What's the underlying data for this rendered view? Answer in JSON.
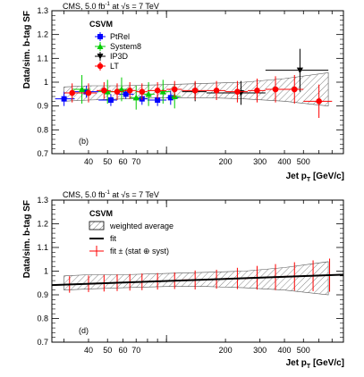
{
  "chart_data": [
    {
      "type": "scatter",
      "panel": "(b)",
      "header": "CMS, 5.0 fb",
      "header_sup": "-1",
      "header_tail": " at √s = 7 TeV",
      "xlabel": "Jet p",
      "xlabel_sub": "T",
      "xlabel_unit": " [GeV/c]",
      "ylabel": "Data/sim. b-tag SF",
      "xscale": "log",
      "xlim": [
        26,
        800
      ],
      "ylim": [
        0.7,
        1.3
      ],
      "xticks": [
        40,
        50,
        60,
        70,
        200,
        300,
        400,
        500
      ],
      "xtick_labels": [
        "40",
        "50",
        "60",
        "70",
        "200",
        "300",
        "400",
        "500"
      ],
      "yticks": [
        0.7,
        0.8,
        0.9,
        1,
        1.1,
        1.2,
        1.3
      ],
      "ytick_labels": [
        "0.7",
        "0.8",
        "0.9",
        "1",
        "1.1",
        "1.2",
        "1.3"
      ],
      "legend_title": "CSVM",
      "legend_position": "top-center",
      "band": {
        "x": [
          30,
          40,
          60,
          100,
          160,
          250,
          400,
          670
        ],
        "lo": [
          0.92,
          0.925,
          0.93,
          0.935,
          0.935,
          0.93,
          0.92,
          0.9
        ],
        "hi": [
          0.98,
          0.985,
          0.985,
          0.99,
          0.995,
          1.0,
          1.015,
          1.04
        ]
      },
      "series": [
        {
          "name": "PtRel",
          "marker": "square",
          "color": "#0000ff",
          "points": [
            {
              "x": 30,
              "xlo": 27,
              "xhi": 34,
              "y": 0.93,
              "err": 0.03
            },
            {
              "x": 39,
              "xlo": 34,
              "xhi": 45,
              "y": 0.96,
              "err": 0.025
            },
            {
              "x": 52,
              "xlo": 45,
              "xhi": 56,
              "y": 0.925,
              "err": 0.025
            },
            {
              "x": 62,
              "xlo": 56,
              "xhi": 68,
              "y": 0.95,
              "err": 0.02
            },
            {
              "x": 75,
              "xlo": 68,
              "xhi": 80,
              "y": 0.93,
              "err": 0.025
            },
            {
              "x": 90,
              "xlo": 80,
              "xhi": 100,
              "y": 0.925,
              "err": 0.025
            },
            {
              "x": 105,
              "xlo": 100,
              "xhi": 115,
              "y": 0.935,
              "err": 0.03
            }
          ]
        },
        {
          "name": "System8",
          "marker": "triangle-up",
          "color": "#00cc00",
          "points": [
            {
              "x": 37,
              "xlo": 33,
              "xhi": 41,
              "y": 0.97,
              "err": 0.06
            },
            {
              "x": 50,
              "xlo": 45,
              "xhi": 55,
              "y": 0.96,
              "err": 0.05
            },
            {
              "x": 59,
              "xlo": 55,
              "xhi": 63,
              "y": 0.97,
              "err": 0.05
            },
            {
              "x": 70,
              "xlo": 65,
              "xhi": 75,
              "y": 0.935,
              "err": 0.05
            },
            {
              "x": 81,
              "xlo": 75,
              "xhi": 87,
              "y": 0.95,
              "err": 0.05
            },
            {
              "x": 96,
              "xlo": 87,
              "xhi": 105,
              "y": 0.96,
              "err": 0.05
            },
            {
              "x": 110,
              "xlo": 105,
              "xhi": 118,
              "y": 0.94,
              "err": 0.05
            }
          ]
        },
        {
          "name": "IP3D",
          "marker": "triangle-down",
          "color": "#000000",
          "points": [
            {
              "x": 140,
              "xlo": 120,
              "xhi": 160,
              "y": 0.96,
              "err": 0.04
            },
            {
              "x": 240,
              "xlo": 160,
              "xhi": 320,
              "y": 0.955,
              "err": 0.05
            },
            {
              "x": 480,
              "xlo": 320,
              "xhi": 670,
              "y": 1.05,
              "err": 0.09
            }
          ]
        },
        {
          "name": "LT",
          "marker": "circle",
          "color": "#ff0000",
          "points": [
            {
              "x": 33,
              "xlo": 30,
              "xhi": 36,
              "y": 0.955,
              "err": 0.04
            },
            {
              "x": 40,
              "xlo": 36,
              "xhi": 44,
              "y": 0.955,
              "err": 0.04
            },
            {
              "x": 48,
              "xlo": 44,
              "xhi": 52,
              "y": 0.965,
              "err": 0.035
            },
            {
              "x": 56,
              "xlo": 52,
              "xhi": 60,
              "y": 0.96,
              "err": 0.035
            },
            {
              "x": 65,
              "xlo": 60,
              "xhi": 70,
              "y": 0.965,
              "err": 0.035
            },
            {
              "x": 75,
              "xlo": 70,
              "xhi": 80,
              "y": 0.96,
              "err": 0.035
            },
            {
              "x": 90,
              "xlo": 80,
              "xhi": 100,
              "y": 0.965,
              "err": 0.035
            },
            {
              "x": 110,
              "xlo": 100,
              "xhi": 120,
              "y": 0.97,
              "err": 0.035
            },
            {
              "x": 140,
              "xlo": 120,
              "xhi": 160,
              "y": 0.965,
              "err": 0.04
            },
            {
              "x": 180,
              "xlo": 160,
              "xhi": 200,
              "y": 0.965,
              "err": 0.04
            },
            {
              "x": 230,
              "xlo": 200,
              "xhi": 260,
              "y": 0.96,
              "err": 0.045
            },
            {
              "x": 290,
              "xlo": 260,
              "xhi": 320,
              "y": 0.965,
              "err": 0.05
            },
            {
              "x": 360,
              "xlo": 320,
              "xhi": 400,
              "y": 0.97,
              "err": 0.055
            },
            {
              "x": 450,
              "xlo": 400,
              "xhi": 500,
              "y": 0.97,
              "err": 0.06
            },
            {
              "x": 600,
              "xlo": 500,
              "xhi": 700,
              "y": 0.92,
              "err": 0.07
            }
          ]
        }
      ]
    },
    {
      "type": "line",
      "panel": "(d)",
      "header": "CMS, 5.0 fb",
      "header_sup": "-1",
      "header_tail": " at √s = 7 TeV",
      "xlabel": "Jet p",
      "xlabel_sub": "T",
      "xlabel_unit": " [GeV/c]",
      "ylabel": "Data/sim. b-tag SF",
      "xscale": "log",
      "xlim": [
        26,
        800
      ],
      "ylim": [
        0.7,
        1.3
      ],
      "xticks": [
        40,
        50,
        60,
        70,
        200,
        300,
        400,
        500
      ],
      "xtick_labels": [
        "40",
        "50",
        "60",
        "70",
        "200",
        "300",
        "400",
        "500"
      ],
      "yticks": [
        0.7,
        0.8,
        0.9,
        1,
        1.1,
        1.2,
        1.3
      ],
      "ytick_labels": [
        "0.7",
        "0.8",
        "0.9",
        "1",
        "1.1",
        "1.2",
        "1.3"
      ],
      "legend_title": "CSVM",
      "legend_position": "top-left",
      "legend": {
        "band_label": "weighted average",
        "fit_label": "fit",
        "err_label": "fit ± (stat ⊕ syst)"
      },
      "band": {
        "x": [
          30,
          40,
          60,
          100,
          160,
          250,
          400,
          670
        ],
        "lo": [
          0.92,
          0.925,
          0.93,
          0.935,
          0.935,
          0.93,
          0.92,
          0.9
        ],
        "hi": [
          0.98,
          0.985,
          0.985,
          0.99,
          0.995,
          1.0,
          1.015,
          1.04
        ]
      },
      "fit": {
        "x": [
          30,
          800
        ],
        "y": [
          0.943,
          0.985
        ]
      },
      "fit_points": {
        "x": [
          32,
          40,
          48,
          56,
          65,
          75,
          90,
          110,
          140,
          180,
          230,
          290,
          360,
          450,
          560,
          680
        ],
        "xlo": [
          30,
          36,
          44,
          52,
          60,
          70,
          80,
          100,
          120,
          160,
          200,
          260,
          320,
          400,
          500,
          620
        ],
        "xhi": [
          36,
          44,
          52,
          60,
          70,
          80,
          100,
          120,
          160,
          200,
          260,
          320,
          400,
          500,
          620,
          740
        ],
        "err": [
          0.035,
          0.035,
          0.035,
          0.035,
          0.035,
          0.035,
          0.035,
          0.035,
          0.04,
          0.04,
          0.045,
          0.05,
          0.055,
          0.06,
          0.065,
          0.07
        ]
      }
    }
  ]
}
